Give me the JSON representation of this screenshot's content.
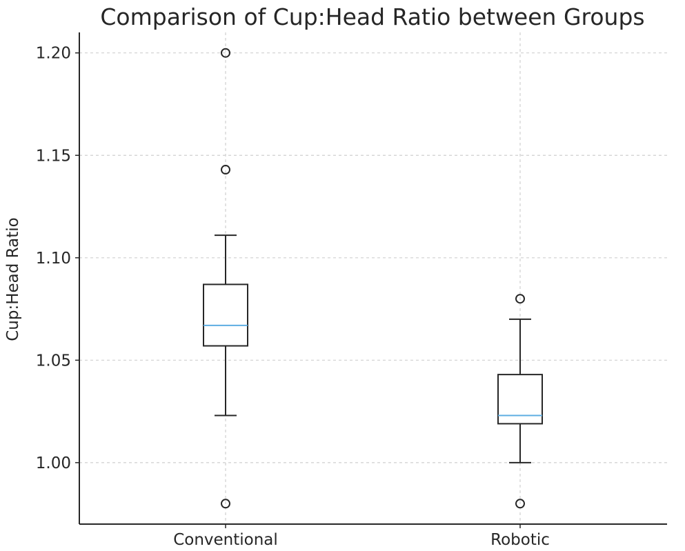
{
  "chart_data": {
    "type": "box",
    "title": "Comparison of Cup:Head Ratio between Groups",
    "xlabel": "",
    "ylabel": "Cup:Head Ratio",
    "ylim": [
      0.97,
      1.21
    ],
    "yticks": [
      "1.00",
      "1.05",
      "1.10",
      "1.15",
      "1.20"
    ],
    "ytick_values": [
      1.0,
      1.05,
      1.1,
      1.15,
      1.2
    ],
    "grid": true,
    "categories": [
      "Conventional",
      "Robotic"
    ],
    "series": [
      {
        "category": "Conventional",
        "whisker_low": 1.023,
        "q1": 1.057,
        "median": 1.067,
        "q3": 1.087,
        "whisker_high": 1.111,
        "outliers": [
          0.98,
          1.143,
          1.2
        ]
      },
      {
        "category": "Robotic",
        "whisker_low": 1.0,
        "q1": 1.019,
        "median": 1.023,
        "q3": 1.043,
        "whisker_high": 1.07,
        "outliers": [
          0.98,
          1.08
        ]
      }
    ],
    "colors": {
      "box": "#262626",
      "median": "#5dade2",
      "grid": "#cfcfcf"
    }
  }
}
